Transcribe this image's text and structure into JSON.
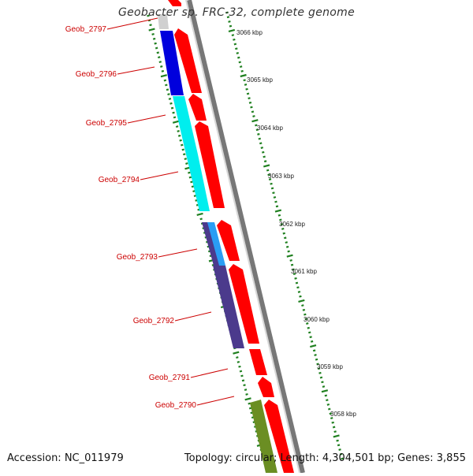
{
  "title": "Geobacter sp. FRC-32, complete genome",
  "footer": {
    "accession": "Accession: NC_011979",
    "summary": "Topology: circular; Length: 4,304,501 bp; Genes: 3,855"
  },
  "colors": {
    "gene_label": "#cc0000",
    "forward_gene": "#ff0000",
    "backbone": "#888888",
    "tick_green": "#208020",
    "kbp_label": "#222222"
  },
  "genes": [
    {
      "label": "Geob_2797",
      "color": "#d0d0d0"
    },
    {
      "label": "Geob_2796",
      "color": "#0000dd"
    },
    {
      "label": "Geob_2795",
      "color": "#00eeee"
    },
    {
      "label": "Geob_2794",
      "color": "#00eeee"
    },
    {
      "label": "Geob_2793",
      "color": "#2a9df4"
    },
    {
      "label": "Geob_2792",
      "color": "#4b3a8c"
    },
    {
      "label": "Geob_2791",
      "color": "#ff0000"
    },
    {
      "label": "Geob_2790",
      "color": "#6b8e23"
    }
  ],
  "scale_labels": [
    "3066 kbp",
    "3065 kbp",
    "3064 kbp",
    "3063 kbp",
    "3062 kbp",
    "3061 kbp",
    "3060 kbp",
    "3059 kbp",
    "3058 kbp"
  ]
}
